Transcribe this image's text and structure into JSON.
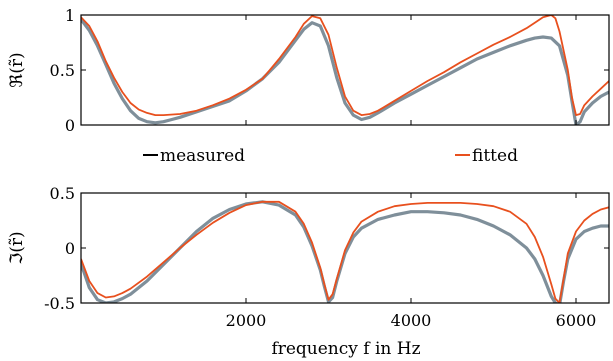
{
  "chart_data": {
    "type": "line",
    "colors": {
      "measured": "#7f8f9a",
      "fitted": "#e8501e"
    },
    "legend": {
      "placement": "between-panels",
      "entries": [
        "measured",
        "fitted"
      ]
    },
    "shared_x": {
      "label": "frequency f in Hz",
      "range": [
        0,
        6400
      ],
      "ticks": [
        2000,
        4000,
        6000
      ],
      "tick_labels": [
        "2000",
        "4000",
        "6000"
      ]
    },
    "panels": [
      {
        "id": "real",
        "ylabel": "ℜ(r̃)",
        "ylim": [
          0,
          1
        ],
        "yticks": [
          0,
          0.5,
          1
        ],
        "ytick_labels": [
          "0",
          "0.5",
          "1"
        ],
        "grid": false,
        "series": [
          {
            "name": "measured",
            "x": [
              0,
              100,
              200,
              300,
              400,
              500,
              600,
              700,
              800,
              900,
              1000,
              1100,
              1200,
              1400,
              1600,
              1800,
              2000,
              2200,
              2400,
              2600,
              2700,
              2800,
              2900,
              3000,
              3100,
              3200,
              3300,
              3400,
              3500,
              3600,
              3800,
              4000,
              4200,
              4400,
              4600,
              4800,
              5000,
              5200,
              5400,
              5500,
              5600,
              5700,
              5800,
              5900,
              5950,
              6000,
              6050,
              6100,
              6200,
              6300,
              6400
            ],
            "y": [
              0.96,
              0.86,
              0.72,
              0.55,
              0.38,
              0.24,
              0.13,
              0.06,
              0.03,
              0.02,
              0.03,
              0.05,
              0.07,
              0.12,
              0.17,
              0.22,
              0.31,
              0.42,
              0.57,
              0.77,
              0.87,
              0.93,
              0.9,
              0.72,
              0.43,
              0.2,
              0.09,
              0.05,
              0.07,
              0.11,
              0.2,
              0.28,
              0.36,
              0.44,
              0.52,
              0.6,
              0.66,
              0.72,
              0.77,
              0.79,
              0.8,
              0.79,
              0.72,
              0.45,
              0.22,
              0.0,
              0.03,
              0.12,
              0.2,
              0.26,
              0.3
            ]
          },
          {
            "name": "fitted",
            "x": [
              0,
              100,
              200,
              300,
              400,
              500,
              600,
              700,
              800,
              900,
              1000,
              1200,
              1400,
              1600,
              1800,
              2000,
              2200,
              2400,
              2600,
              2700,
              2800,
              2900,
              3000,
              3100,
              3200,
              3300,
              3400,
              3500,
              3600,
              3800,
              4000,
              4200,
              4400,
              4600,
              4800,
              5000,
              5200,
              5400,
              5500,
              5600,
              5700,
              5750,
              5800,
              5900,
              5950,
              6000,
              6050,
              6100,
              6200,
              6300,
              6400
            ],
            "y": [
              0.98,
              0.9,
              0.76,
              0.58,
              0.43,
              0.3,
              0.2,
              0.14,
              0.11,
              0.09,
              0.09,
              0.1,
              0.13,
              0.18,
              0.24,
              0.32,
              0.42,
              0.6,
              0.8,
              0.92,
              0.99,
              0.97,
              0.82,
              0.52,
              0.26,
              0.13,
              0.09,
              0.1,
              0.13,
              0.22,
              0.31,
              0.4,
              0.48,
              0.57,
              0.65,
              0.73,
              0.8,
              0.88,
              0.93,
              0.98,
              1.0,
              0.97,
              0.85,
              0.5,
              0.25,
              0.09,
              0.1,
              0.18,
              0.26,
              0.33,
              0.4
            ]
          }
        ]
      },
      {
        "id": "imag",
        "ylabel": "ℑ(r̃)",
        "ylim": [
          -0.5,
          0.5
        ],
        "yticks": [
          -0.5,
          0,
          0.5
        ],
        "ytick_labels": [
          "-0.5",
          "0",
          "0.5"
        ],
        "grid": false,
        "series": [
          {
            "name": "measured",
            "x": [
              0,
              100,
              200,
              300,
              400,
              500,
              600,
              800,
              1000,
              1200,
              1400,
              1600,
              1800,
              2000,
              2200,
              2400,
              2600,
              2700,
              2800,
              2900,
              2950,
              3000,
              3050,
              3100,
              3200,
              3300,
              3400,
              3600,
              3800,
              4000,
              4200,
              4400,
              4600,
              4800,
              5000,
              5200,
              5400,
              5500,
              5600,
              5700,
              5750,
              5800,
              5850,
              5900,
              6000,
              6100,
              6200,
              6300,
              6400
            ],
            "y": [
              -0.14,
              -0.36,
              -0.47,
              -0.5,
              -0.49,
              -0.46,
              -0.42,
              -0.3,
              -0.15,
              0.0,
              0.15,
              0.27,
              0.35,
              0.4,
              0.42,
              0.39,
              0.3,
              0.19,
              0.02,
              -0.2,
              -0.35,
              -0.49,
              -0.45,
              -0.3,
              -0.05,
              0.1,
              0.18,
              0.26,
              0.3,
              0.33,
              0.33,
              0.32,
              0.3,
              0.26,
              0.2,
              0.12,
              0.0,
              -0.1,
              -0.25,
              -0.44,
              -0.5,
              -0.52,
              -0.3,
              -0.1,
              0.08,
              0.15,
              0.18,
              0.2,
              0.2
            ]
          },
          {
            "name": "fitted",
            "x": [
              0,
              100,
              200,
              300,
              400,
              500,
              600,
              800,
              1000,
              1200,
              1400,
              1600,
              1800,
              2000,
              2200,
              2400,
              2600,
              2700,
              2800,
              2900,
              2950,
              3000,
              3050,
              3100,
              3200,
              3300,
              3400,
              3600,
              3800,
              4000,
              4200,
              4400,
              4600,
              4800,
              5000,
              5200,
              5400,
              5500,
              5600,
              5700,
              5750,
              5800,
              5850,
              5900,
              6000,
              6100,
              6200,
              6300,
              6400
            ],
            "y": [
              -0.1,
              -0.3,
              -0.41,
              -0.45,
              -0.44,
              -0.41,
              -0.37,
              -0.26,
              -0.13,
              0.0,
              0.12,
              0.23,
              0.32,
              0.39,
              0.42,
              0.42,
              0.33,
              0.22,
              0.05,
              -0.18,
              -0.33,
              -0.47,
              -0.42,
              -0.28,
              -0.02,
              0.14,
              0.24,
              0.33,
              0.38,
              0.4,
              0.41,
              0.41,
              0.41,
              0.4,
              0.38,
              0.33,
              0.22,
              0.1,
              -0.08,
              -0.33,
              -0.46,
              -0.5,
              -0.28,
              -0.05,
              0.15,
              0.25,
              0.31,
              0.35,
              0.37
            ]
          }
        ]
      }
    ]
  }
}
